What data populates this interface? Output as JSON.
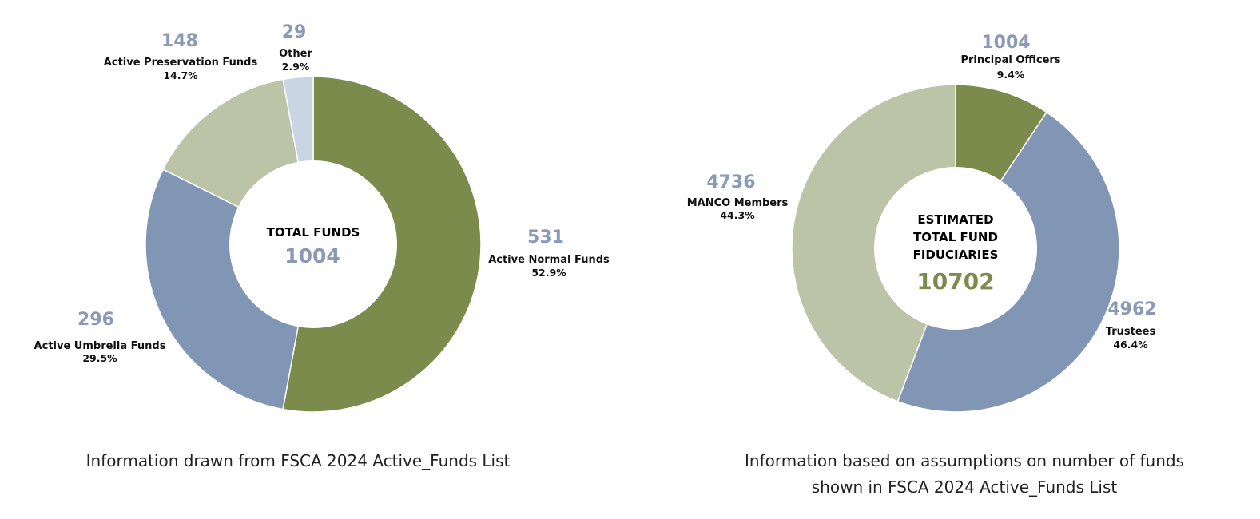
{
  "chart_data": [
    {
      "type": "pie",
      "donut": true,
      "center_title": "TOTAL FUNDS",
      "center_value": "1004",
      "caption": "Information drawn from FSCA 2024 Active_Funds List",
      "slices": [
        {
          "label": "Active Normal Funds",
          "value": 531,
          "pct": "52.9%",
          "color": "#7a8b4b"
        },
        {
          "label": "Active Umbrella Funds",
          "value": 296,
          "pct": "29.5%",
          "color": "#8196b5"
        },
        {
          "label": "Active Preservation Funds",
          "value": 148,
          "pct": "14.7%",
          "color": "#bbc4a7"
        },
        {
          "label": "Other",
          "value": 29,
          "pct": "2.9%",
          "color": "#c9d5e3"
        }
      ]
    },
    {
      "type": "pie",
      "donut": true,
      "center_title_lines": [
        "ESTIMATED",
        "TOTAL FUND",
        "FIDUCIARIES"
      ],
      "center_value": "10702",
      "caption_lines": [
        "Information based on assumptions on number of funds",
        "shown in FSCA 2024 Active_Funds List"
      ],
      "slices": [
        {
          "label": "Principal Officers",
          "value": 1004,
          "pct": "9.4%",
          "color": "#7a8b4b"
        },
        {
          "label": "Trustees",
          "value": 4962,
          "pct": "46.4%",
          "color": "#8196b5"
        },
        {
          "label": "MANCO Members",
          "value": 4736,
          "pct": "44.3%",
          "color": "#bbc4a7"
        }
      ]
    }
  ]
}
